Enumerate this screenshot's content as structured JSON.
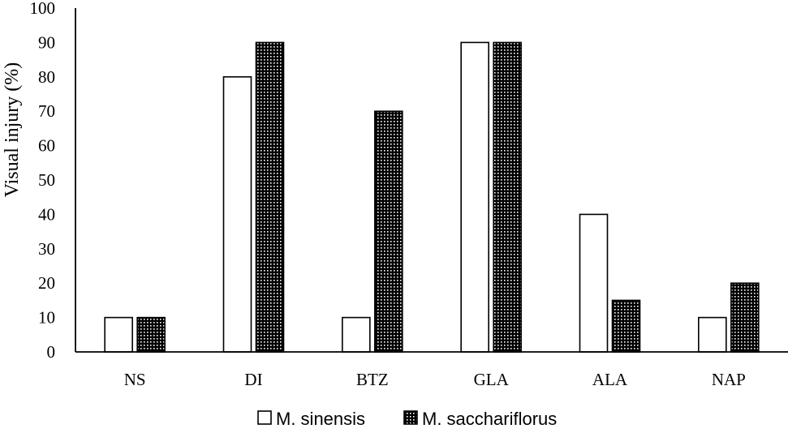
{
  "chart_data": {
    "type": "bar",
    "title": "",
    "xlabel": "",
    "ylabel": "Visual  injury  (%)",
    "ylim": [
      0,
      100
    ],
    "yticks": [
      0,
      10,
      20,
      30,
      40,
      50,
      60,
      70,
      80,
      90,
      100
    ],
    "categories": [
      "NS",
      "DI",
      "BTZ",
      "GLA",
      "ALA",
      "NAP"
    ],
    "series": [
      {
        "name": "M. sinensis",
        "pattern": "white",
        "values": [
          10,
          80,
          10,
          90,
          40,
          10
        ]
      },
      {
        "name": "M. sacchariflorus",
        "pattern": "dotted-black",
        "values": [
          10,
          90,
          70,
          90,
          15,
          20
        ]
      }
    ],
    "legend_position": "bottom",
    "grid": false,
    "colors": {
      "fill_light": "#ffffff",
      "fill_dark": "#000000",
      "outline": "#000000"
    }
  }
}
